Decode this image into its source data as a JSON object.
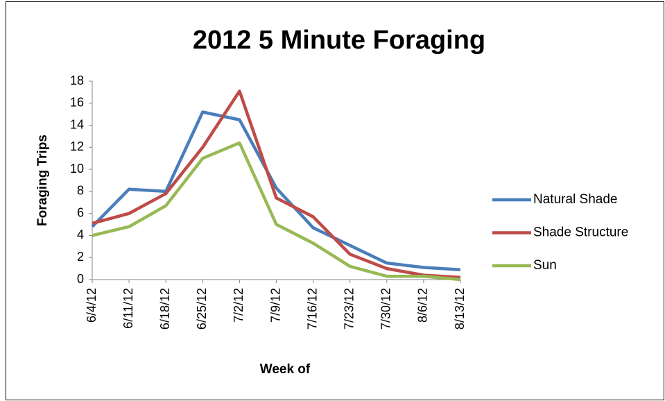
{
  "chart_data": {
    "type": "line",
    "title": "2012 5 Minute Foraging",
    "x_label": "Week of",
    "y_label": "Foraging Trips",
    "categories": [
      "6/4/12",
      "6/11/12",
      "6/18/12",
      "6/25/12",
      "7/2/12",
      "7/9/12",
      "7/16/12",
      "7/23/12",
      "7/30/12",
      "8/6/12",
      "8/13/12"
    ],
    "series": [
      {
        "name": "Natural Shade",
        "color": "#4a7ebb",
        "values": [
          4.8,
          8.2,
          8.0,
          15.2,
          14.5,
          8.3,
          4.7,
          3.1,
          1.5,
          1.1,
          0.9
        ]
      },
      {
        "name": "Shade Structure",
        "color": "#be4b48",
        "values": [
          5.1,
          6.0,
          7.8,
          12.0,
          17.1,
          7.4,
          5.7,
          2.3,
          1.0,
          0.4,
          0.2
        ]
      },
      {
        "name": "Sun",
        "color": "#98b954",
        "values": [
          4.0,
          4.8,
          6.7,
          11.0,
          12.4,
          5.0,
          3.3,
          1.2,
          0.3,
          0.3,
          0.0
        ]
      }
    ],
    "ylim": [
      0,
      18
    ],
    "yticks": [
      0,
      2,
      4,
      6,
      8,
      10,
      12,
      14,
      16,
      18
    ],
    "grid": false,
    "legend": "right"
  }
}
